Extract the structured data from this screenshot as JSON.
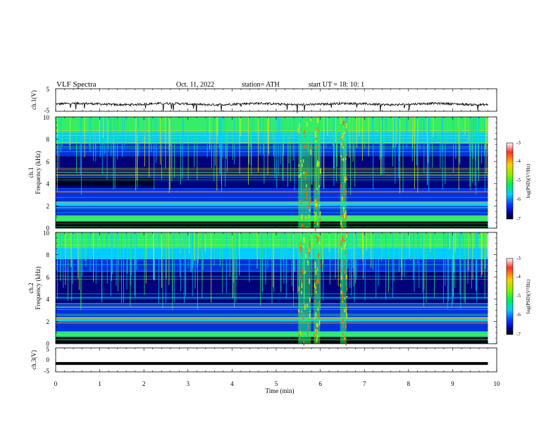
{
  "header": {
    "title": "VLF  Spectra",
    "date": "Oct. 11, 2022",
    "station": "station= ATH",
    "start": "start  UT  =    18: 10: 1"
  },
  "chart_data": [
    {
      "type": "line",
      "name": "ch1-waveform",
      "ylabel": "ch.1(V)",
      "ylim": [
        -5,
        5
      ],
      "yticks": [
        "5",
        "-5"
      ],
      "xlim": [
        0,
        10
      ],
      "level": -1.8,
      "noise": 0.5
    },
    {
      "type": "heatmap",
      "name": "ch1-spectrogram",
      "ylabel_top": "ch.1",
      "ylabel": "Frequency  (kHz)",
      "ylim": [
        0,
        10
      ],
      "yticks": [
        "0",
        "2",
        "4",
        "6",
        "8",
        "10"
      ],
      "xlim": [
        0,
        9.8
      ],
      "colorbar": {
        "label": "log(PSD)(V²/Hz)",
        "range": [
          -7,
          -3
        ],
        "ticks": [
          "-3",
          "-4",
          "-5",
          "-6",
          "-7"
        ]
      },
      "broadband_bursts_min": [
        5.5,
        5.85,
        6.45
      ]
    },
    {
      "type": "heatmap",
      "name": "ch2-spectrogram",
      "ylabel_top": "ch.2",
      "ylabel": "Frequency  (kHz)",
      "ylim": [
        0,
        10
      ],
      "yticks": [
        "0",
        "2",
        "4",
        "6",
        "8",
        "10"
      ],
      "xlim": [
        0,
        9.8
      ],
      "colorbar": {
        "label": "log(PSD)(V²/Hz)",
        "range": [
          -7,
          -3
        ],
        "ticks": [
          "-3",
          "-4",
          "-5",
          "-6",
          "-7"
        ]
      },
      "broadband_bursts_min": [
        5.5,
        5.85,
        6.45
      ]
    },
    {
      "type": "line",
      "name": "ch3-waveform",
      "ylabel": "ch.3(V)",
      "ylim": [
        -5,
        5
      ],
      "yticks": [
        "5",
        "0",
        "-5"
      ],
      "xlim": [
        0,
        9.8
      ],
      "level": -1.5,
      "noise": 0.0
    }
  ],
  "xaxis": {
    "label": "Time  (min)",
    "ticks": [
      "0",
      "1",
      "2",
      "3",
      "4",
      "5",
      "6",
      "7",
      "8",
      "9",
      "10"
    ],
    "range": [
      0,
      10
    ]
  },
  "colors": {
    "dark_blue": "#00007a",
    "blue": "#0033dd",
    "cyan": "#00ccff",
    "green": "#33ee66",
    "yellow": "#ddee00"
  }
}
